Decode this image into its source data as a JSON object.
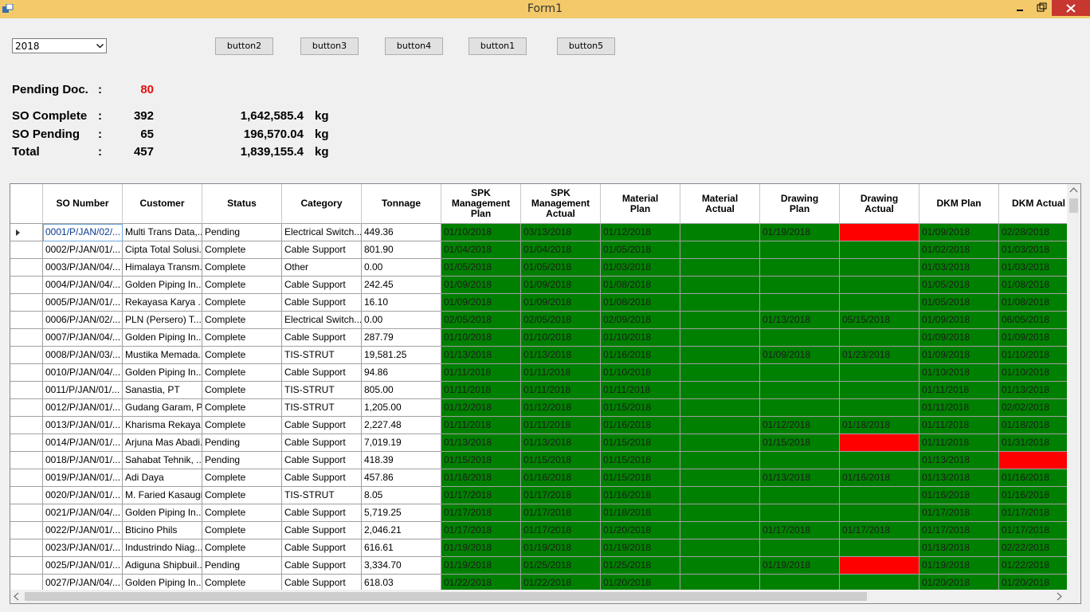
{
  "window": {
    "title": "Form1"
  },
  "toolbar": {
    "year": "2018",
    "buttons": [
      "button2",
      "button3",
      "button4",
      "button1",
      "button5"
    ]
  },
  "summary": {
    "separator": ":",
    "pending_label": "Pending Doc.",
    "pending_value": 80,
    "rows": [
      {
        "label": "SO Complete",
        "count": 392,
        "weight": "1,642,585.4",
        "unit": "kg"
      },
      {
        "label": "SO Pending",
        "count": 65,
        "weight": "196,570.04",
        "unit": "kg"
      },
      {
        "label": "Total",
        "count": 457,
        "weight": "1,839,155.4",
        "unit": "kg"
      }
    ]
  },
  "table": {
    "columns": [
      "SO Number",
      "Customer",
      "Status",
      "Category",
      "Tonnage",
      "SPK Management Plan",
      "SPK Management Actual",
      "Material Plan",
      "Material Actual",
      "Drawing Plan",
      "Drawing Actual",
      "DKM Plan",
      "DKM Actual"
    ],
    "rows": [
      [
        "0001/P/JAN/02/...",
        "Multi Trans Data,...",
        "Pending",
        "Electrical Switch...",
        "449.36",
        "01/10/2018",
        "03/13/2018",
        "01/12/2018",
        null,
        "01/19/2018",
        null,
        "01/09/2018",
        "02/28/2018"
      ],
      [
        "0002/P/JAN/01/...",
        "Cipta Total Solusi...",
        "Complete",
        "Cable Support",
        "801.90",
        "01/04/2018",
        "01/04/2018",
        "01/05/2018",
        null,
        null,
        null,
        "01/02/2018",
        "01/03/2018"
      ],
      [
        "0003/P/JAN/04/...",
        "Himalaya Transm...",
        "Complete",
        "Other",
        "0.00",
        "01/05/2018",
        "01/05/2018",
        "01/03/2018",
        null,
        null,
        null,
        "01/03/2018",
        "01/03/2018"
      ],
      [
        "0004/P/JAN/04/...",
        "Golden Piping In...",
        "Complete",
        "Cable Support",
        "242.45",
        "01/09/2018",
        "01/09/2018",
        "01/08/2018",
        null,
        null,
        null,
        "01/05/2018",
        "01/08/2018"
      ],
      [
        "0005/P/JAN/01/...",
        "Rekayasa Karya ...",
        "Complete",
        "Cable Support",
        "16.10",
        "01/09/2018",
        "01/09/2018",
        "01/08/2018",
        null,
        null,
        null,
        "01/05/2018",
        "01/08/2018"
      ],
      [
        "0006/P/JAN/02/...",
        " PLN (Persero) T...",
        "Complete",
        "Electrical Switch...",
        "0.00",
        "02/05/2018",
        "02/05/2018",
        "02/09/2018",
        null,
        "01/13/2018",
        "05/15/2018",
        "01/09/2018",
        "06/05/2018"
      ],
      [
        "0007/P/JAN/04/...",
        "Golden Piping In...",
        "Complete",
        "Cable Support",
        "287.79",
        "01/10/2018",
        "01/10/2018",
        "01/10/2018",
        null,
        null,
        null,
        "01/09/2018",
        "01/09/2018"
      ],
      [
        "0008/P/JAN/03/...",
        "Mustika Memada...",
        "Complete",
        "TIS-STRUT",
        "19,581.25",
        "01/13/2018",
        "01/13/2018",
        "01/16/2018",
        null,
        "01/09/2018",
        "01/23/2018",
        "01/09/2018",
        "01/10/2018"
      ],
      [
        "0010/P/JAN/04/...",
        "Golden Piping In...",
        "Complete",
        "Cable Support",
        "94.86",
        "01/11/2018",
        "01/11/2018",
        "01/10/2018",
        null,
        null,
        null,
        "01/10/2018",
        "01/10/2018"
      ],
      [
        "0011/P/JAN/01/...",
        "Sanastia, PT",
        "Complete",
        "TIS-STRUT",
        "805.00",
        "01/11/2018",
        "01/11/2018",
        "01/11/2018",
        null,
        null,
        null,
        "01/11/2018",
        "01/13/2018"
      ],
      [
        "0012/P/JAN/01/...",
        "Gudang Garam, PT",
        "Complete",
        "TIS-STRUT",
        "1,205.00",
        "01/12/2018",
        "01/12/2018",
        "01/15/2018",
        null,
        null,
        null,
        "01/11/2018",
        "02/02/2018"
      ],
      [
        "0013/P/JAN/01/...",
        "Kharisma Rekaya...",
        "Complete",
        "Cable Support",
        "2,227.48",
        "01/11/2018",
        "01/11/2018",
        "01/16/2018",
        null,
        "01/12/2018",
        "01/18/2018",
        "01/11/2018",
        "01/18/2018"
      ],
      [
        "0014/P/JAN/01/...",
        "Arjuna Mas Abadi...",
        "Pending",
        "Cable Support",
        "7,019.19",
        "01/13/2018",
        "01/13/2018",
        "01/15/2018",
        null,
        "01/15/2018",
        null,
        "01/11/2018",
        "01/31/2018"
      ],
      [
        "0018/P/JAN/01/...",
        "Sahabat Tehnik, ...",
        "Pending",
        "Cable Support",
        "418.39",
        "01/15/2018",
        "01/15/2018",
        "01/15/2018",
        null,
        null,
        null,
        "01/13/2018",
        null
      ],
      [
        "0019/P/JAN/01/...",
        "Adi Daya",
        "Complete",
        "Cable Support",
        "457.86",
        "01/16/2018",
        "01/16/2018",
        "01/15/2018",
        null,
        "01/13/2018",
        "01/16/2018",
        "01/13/2018",
        "01/16/2018"
      ],
      [
        "0020/P/JAN/01/...",
        "M. Faried Kasaugie",
        "Complete",
        "TIS-STRUT",
        "8.05",
        "01/17/2018",
        "01/17/2018",
        "01/16/2018",
        null,
        null,
        null,
        "01/16/2018",
        "01/16/2018"
      ],
      [
        "0021/P/JAN/04/...",
        "Golden Piping In...",
        "Complete",
        "Cable Support",
        "5,719.25",
        "01/17/2018",
        "01/17/2018",
        "01/18/2018",
        null,
        null,
        null,
        "01/17/2018",
        "01/17/2018"
      ],
      [
        "0022/P/JAN/01/...",
        "Bticino Phils",
        "Complete",
        "Cable Support",
        "2,046.21",
        "01/17/2018",
        "01/17/2018",
        "01/20/2018",
        null,
        "01/17/2018",
        "01/17/2018",
        "01/17/2018",
        "01/17/2018"
      ],
      [
        "0023/P/JAN/01/...",
        " Industrindo Niag...",
        "Complete",
        "Cable Support",
        "616.61",
        "01/19/2018",
        "01/19/2018",
        "01/19/2018",
        null,
        null,
        null,
        "01/18/2018",
        "02/22/2018"
      ],
      [
        "0025/P/JAN/01/...",
        "Adiguna Shipbuil...",
        "Pending",
        "Cable Support",
        "3,334.70",
        "01/19/2018",
        "01/25/2018",
        "01/25/2018",
        null,
        "01/19/2018",
        null,
        "01/19/2018",
        "01/22/2018"
      ],
      [
        "0027/P/JAN/04/...",
        " Golden Piping In...",
        "Complete",
        "Cable Support",
        "618.03",
        "01/22/2018",
        "01/22/2018",
        "01/20/2018",
        null,
        null,
        null,
        "01/20/2018",
        "01/20/2018"
      ]
    ],
    "flagged_cells": [
      [
        0,
        10
      ],
      [
        12,
        10
      ],
      [
        13,
        12
      ],
      [
        19,
        10
      ]
    ]
  }
}
